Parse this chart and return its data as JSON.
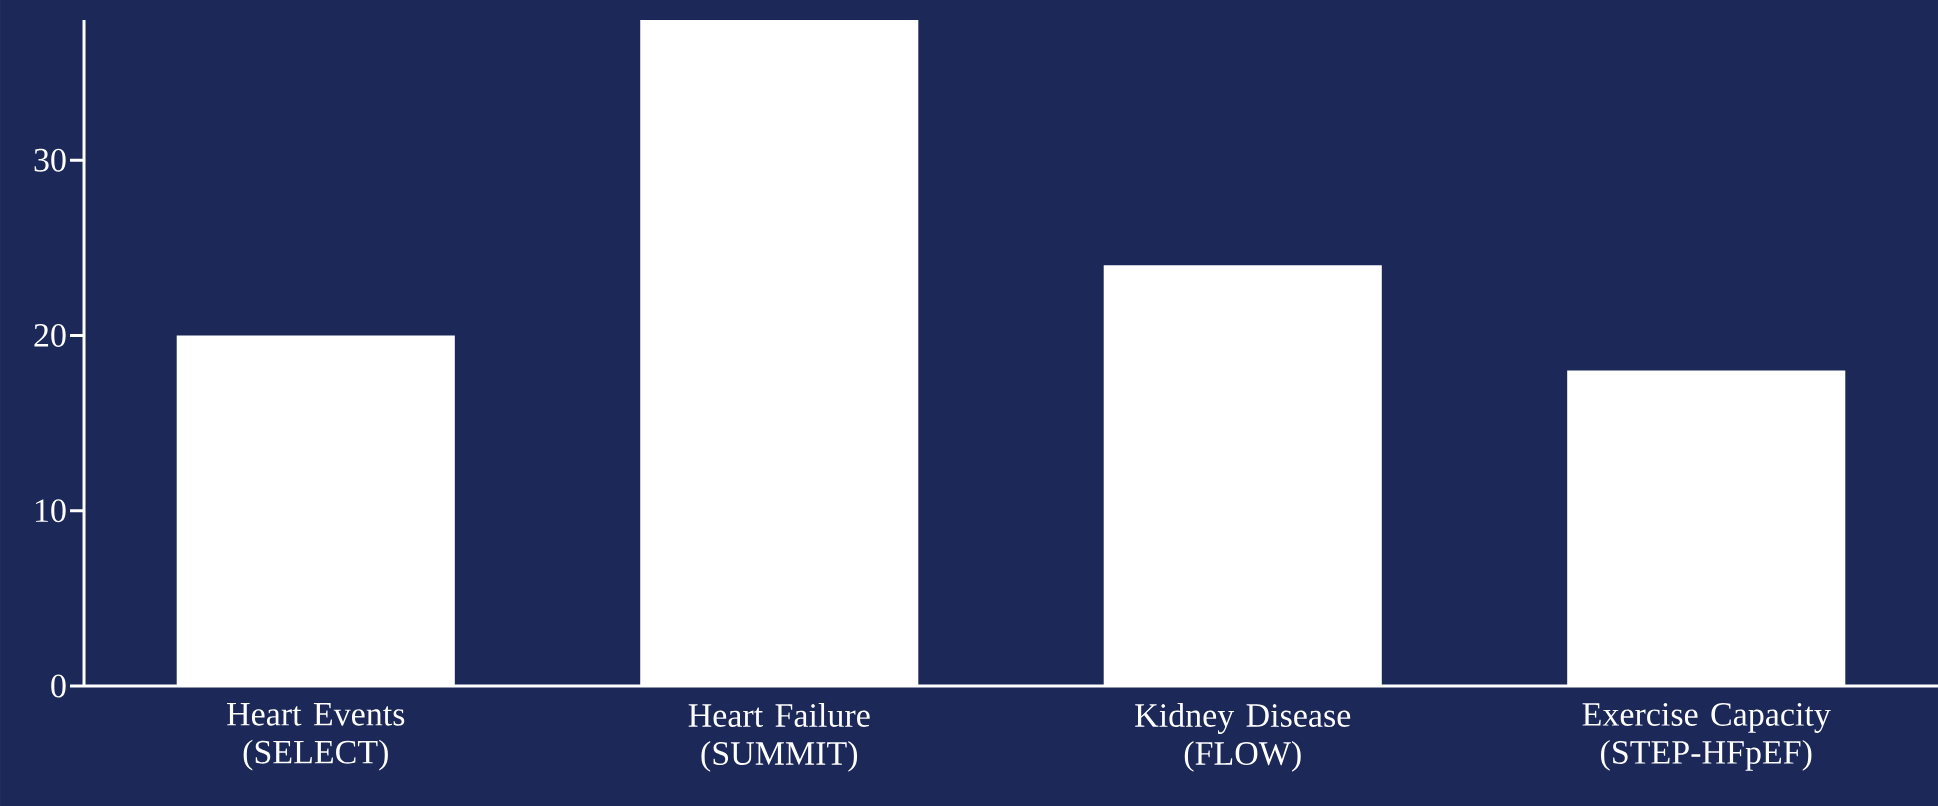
{
  "chart_data": {
    "type": "bar",
    "categories": [
      "Heart Events (SELECT)",
      "Heart Failure (SUMMIT)",
      "Kidney Disease (FLOW)",
      "Exercise Capacity (STEP-HFpEF)"
    ],
    "values": [
      20,
      38,
      24,
      18
    ],
    "color": "#ffffff",
    "ylim": [
      0,
      38
    ],
    "yticks": [
      0,
      10,
      20,
      30
    ]
  }
}
